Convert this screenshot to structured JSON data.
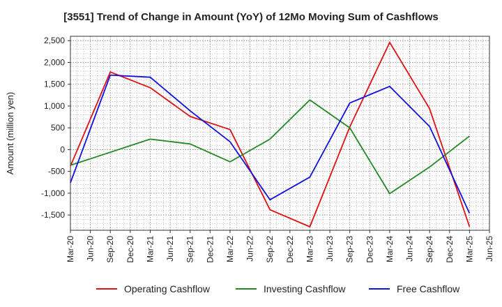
{
  "chart_data": {
    "type": "line",
    "title": "[3551]  Trend of Change in Amount (YoY) of 12Mo Moving Sum of Cashflows",
    "xlabel": "",
    "ylabel": "Amount (million yen)",
    "ylim": [
      -1850,
      2600
    ],
    "grid": true,
    "legend_position": "bottom",
    "x_ticks": [
      "Mar-20",
      "Jun-20",
      "Sep-20",
      "Dec-20",
      "Mar-21",
      "Jun-21",
      "Sep-21",
      "Dec-21",
      "Mar-22",
      "Jun-22",
      "Sep-22",
      "Dec-22",
      "Mar-23",
      "Jun-23",
      "Sep-23",
      "Dec-23",
      "Mar-24",
      "Jun-24",
      "Sep-24",
      "Dec-24",
      "Mar-25",
      "Jun-25"
    ],
    "y_ticks": [
      2500,
      2000,
      1500,
      1000,
      500,
      0,
      -500,
      -1000,
      -1500
    ],
    "y_tick_labels": [
      "2,500",
      "2,000",
      "1,500",
      "1,000",
      "500",
      "0",
      "-500",
      "-1,000",
      "-1,500"
    ],
    "series": [
      {
        "name": "Operating Cashflow",
        "color": "#dd1111",
        "points": [
          {
            "x": "Mar-20",
            "y": -380
          },
          {
            "x": "Sep-20",
            "y": 1780
          },
          {
            "x": "Mar-21",
            "y": 1420
          },
          {
            "x": "Sep-21",
            "y": 760
          },
          {
            "x": "Mar-22",
            "y": 460
          },
          {
            "x": "Sep-22",
            "y": -1380
          },
          {
            "x": "Mar-23",
            "y": -1770
          },
          {
            "x": "Sep-23",
            "y": 520
          },
          {
            "x": "Mar-24",
            "y": 2460
          },
          {
            "x": "Sep-24",
            "y": 940
          },
          {
            "x": "Mar-25",
            "y": -1770
          }
        ]
      },
      {
        "name": "Investing Cashflow",
        "color": "#228822",
        "points": [
          {
            "x": "Mar-20",
            "y": -360
          },
          {
            "x": "Sep-20",
            "y": -60
          },
          {
            "x": "Mar-21",
            "y": 240
          },
          {
            "x": "Sep-21",
            "y": 130
          },
          {
            "x": "Mar-22",
            "y": -280
          },
          {
            "x": "Sep-22",
            "y": 240
          },
          {
            "x": "Mar-23",
            "y": 1140
          },
          {
            "x": "Sep-23",
            "y": 500
          },
          {
            "x": "Mar-24",
            "y": -1010
          },
          {
            "x": "Sep-24",
            "y": -400
          },
          {
            "x": "Mar-25",
            "y": 310
          }
        ]
      },
      {
        "name": "Free Cashflow",
        "color": "#1111dd",
        "points": [
          {
            "x": "Mar-20",
            "y": -760
          },
          {
            "x": "Sep-20",
            "y": 1710
          },
          {
            "x": "Mar-21",
            "y": 1660
          },
          {
            "x": "Sep-21",
            "y": 890
          },
          {
            "x": "Mar-22",
            "y": 180
          },
          {
            "x": "Sep-22",
            "y": -1150
          },
          {
            "x": "Mar-23",
            "y": -630
          },
          {
            "x": "Sep-23",
            "y": 1070
          },
          {
            "x": "Mar-24",
            "y": 1450
          },
          {
            "x": "Sep-24",
            "y": 530
          },
          {
            "x": "Mar-25",
            "y": -1460
          }
        ]
      }
    ]
  }
}
